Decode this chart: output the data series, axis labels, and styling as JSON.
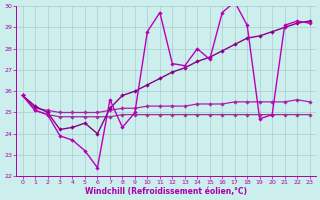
{
  "x": [
    0,
    1,
    2,
    3,
    4,
    5,
    6,
    7,
    8,
    9,
    10,
    11,
    12,
    13,
    14,
    15,
    16,
    17,
    18,
    19,
    20,
    21,
    22,
    23
  ],
  "series_zigzag": [
    25.8,
    25.1,
    24.9,
    23.9,
    23.7,
    23.2,
    22.4,
    25.6,
    24.3,
    25.0,
    28.8,
    29.7,
    27.3,
    27.2,
    28.0,
    27.5,
    29.7,
    30.2,
    29.1,
    24.7,
    24.9,
    29.1,
    29.3,
    29.2
  ],
  "series_trend": [
    25.8,
    25.3,
    25.0,
    24.2,
    24.3,
    24.5,
    24.0,
    25.2,
    25.8,
    26.0,
    26.3,
    26.6,
    26.9,
    27.1,
    27.4,
    27.6,
    27.9,
    28.2,
    28.5,
    28.6,
    28.8,
    29.0,
    29.2,
    29.3
  ],
  "series_flat1": [
    25.8,
    25.2,
    25.1,
    25.0,
    25.0,
    25.0,
    25.0,
    25.1,
    25.2,
    25.2,
    25.3,
    25.3,
    25.3,
    25.3,
    25.4,
    25.4,
    25.4,
    25.5,
    25.5,
    25.5,
    25.5,
    25.5,
    25.6,
    25.5
  ],
  "series_flat2": [
    25.8,
    25.1,
    24.9,
    24.8,
    24.8,
    24.8,
    24.8,
    24.8,
    24.9,
    24.9,
    24.9,
    24.9,
    24.9,
    24.9,
    24.9,
    24.9,
    24.9,
    24.9,
    24.9,
    24.9,
    24.9,
    24.9,
    24.9,
    24.9
  ],
  "color_zigzag": "#bb00bb",
  "color_trend": "#880088",
  "color_flat1": "#aa22aa",
  "color_flat2": "#993399",
  "bg_color": "#cceeed",
  "grid_color": "#aacccc",
  "tick_color": "#aa00aa",
  "xlabel": "Windchill (Refroidissement éolien,°C)",
  "xlim_min": -0.5,
  "xlim_max": 23.5,
  "ylim_min": 22,
  "ylim_max": 30,
  "yticks": [
    22,
    23,
    24,
    25,
    26,
    27,
    28,
    29,
    30
  ],
  "xticks": [
    0,
    1,
    2,
    3,
    4,
    5,
    6,
    7,
    8,
    9,
    10,
    11,
    12,
    13,
    14,
    15,
    16,
    17,
    18,
    19,
    20,
    21,
    22,
    23
  ]
}
